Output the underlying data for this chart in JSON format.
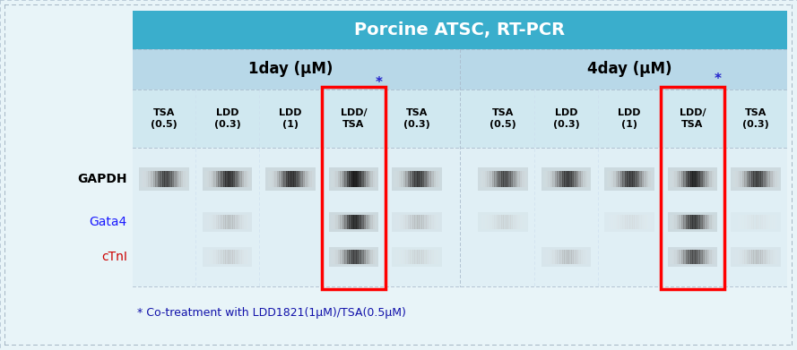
{
  "title": "Porcine ATSC, RT-PCR",
  "title_bg": "#3AAECC",
  "title_color": "white",
  "group1_label": "1day (μM)",
  "group2_label": "4day (μM)",
  "columns_group1": [
    "TSA\n(0.5)",
    "LDD\n(0.3)",
    "LDD\n(1)",
    "LDD/\nTSA",
    "TSA\n(0.3)"
  ],
  "columns_group2": [
    "TSA\n(0.5)",
    "LDD\n(0.3)",
    "LDD\n(1)",
    "LDD/\nTSA",
    "TSA\n(0.3)"
  ],
  "row_labels": [
    "GAPDH",
    "Gata4",
    "cTnI"
  ],
  "row_label_colors": [
    "black",
    "#1a1aff",
    "#cc0000"
  ],
  "outer_bg": "#e8f4f8",
  "inner_bg": "#f0f8fc",
  "title_area_bg": "#3AAECC",
  "subheader_bg": "#b8d8e8",
  "colheader_bg": "#d0e8f0",
  "gel_bg": "#e0eff5",
  "footnote": "* Co-treatment with LDD1821(1μM)/TSA(0.5μM)",
  "highlight_col": 3,
  "star_color": "#2222cc",
  "bands": {
    "GAPDH": {
      "group1": [
        0.82,
        0.88,
        0.88,
        0.95,
        0.85
      ],
      "group2": [
        0.8,
        0.85,
        0.85,
        0.92,
        0.84
      ]
    },
    "Gata4": {
      "group1": [
        0.0,
        0.38,
        0.0,
        0.9,
        0.38
      ],
      "group2": [
        0.28,
        0.0,
        0.22,
        0.85,
        0.18
      ]
    },
    "cTnI": {
      "group1": [
        0.0,
        0.32,
        0.0,
        0.82,
        0.28
      ],
      "group2": [
        0.0,
        0.38,
        0.0,
        0.78,
        0.38
      ]
    }
  }
}
